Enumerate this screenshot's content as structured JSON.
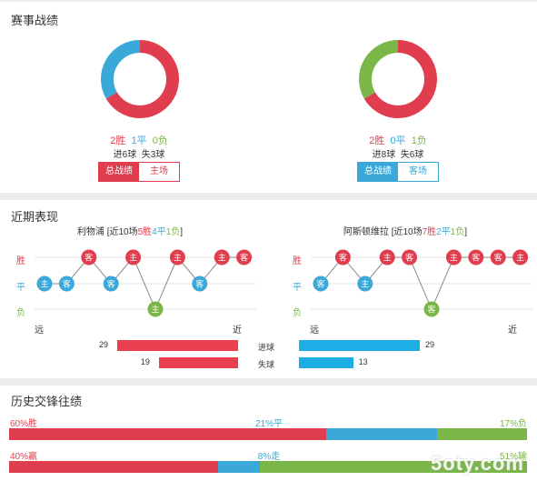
{
  "colors": {
    "win": "#e03e4e",
    "draw": "#3aa9d9",
    "loss": "#7ab648",
    "bar_home": "#e8404e",
    "bar_away": "#1daee6",
    "panel": "#ffffff",
    "background": "#ececec"
  },
  "record": {
    "title": "赛事战绩",
    "home": {
      "wins": "2胜",
      "draws": "1平",
      "losses": "0负",
      "goals_for": "进6球",
      "goals_against": "失3球",
      "donut": {
        "win": 2,
        "draw": 1,
        "loss": 0
      },
      "btn_total": "总战绩",
      "btn_side": "主场"
    },
    "away": {
      "wins": "2胜",
      "draws": "0平",
      "losses": "1负",
      "goals_for": "进8球",
      "goals_against": "失6球",
      "donut": {
        "win": 2,
        "draw": 0,
        "loss": 1
      },
      "btn_total": "总战绩",
      "btn_side": "客场"
    }
  },
  "recent": {
    "title": "近期表现",
    "row_labels": {
      "win": "胜",
      "draw": "平",
      "loss": "负"
    },
    "far": "远",
    "near": "近",
    "goals_scored_label": "进球",
    "goals_conceded_label": "失球",
    "home": {
      "team": "利物浦",
      "prefix": "[近10场",
      "w": "5胜",
      "d": "4平",
      "l": "1负",
      "suffix": "]",
      "matches": [
        {
          "venue": "主",
          "result": "平"
        },
        {
          "venue": "客",
          "result": "平"
        },
        {
          "venue": "客",
          "result": "胜"
        },
        {
          "venue": "客",
          "result": "平"
        },
        {
          "venue": "主",
          "result": "胜"
        },
        {
          "venue": "主",
          "result": "负"
        },
        {
          "venue": "主",
          "result": "胜"
        },
        {
          "venue": "客",
          "result": "平"
        },
        {
          "venue": "主",
          "result": "胜"
        },
        {
          "venue": "客",
          "result": "胜"
        }
      ],
      "goals_scored": 29,
      "goals_conceded": 19
    },
    "away": {
      "team": "阿斯顿维拉",
      "prefix": "[近10场",
      "w": "7胜",
      "d": "2平",
      "l": "1负",
      "suffix": "]",
      "matches": [
        {
          "venue": "客",
          "result": "平"
        },
        {
          "venue": "客",
          "result": "胜"
        },
        {
          "venue": "主",
          "result": "平"
        },
        {
          "venue": "主",
          "result": "胜"
        },
        {
          "venue": "客",
          "result": "胜"
        },
        {
          "venue": "客",
          "result": "负"
        },
        {
          "venue": "主",
          "result": "胜"
        },
        {
          "venue": "客",
          "result": "胜"
        },
        {
          "venue": "客",
          "result": "胜"
        },
        {
          "venue": "主",
          "result": "胜"
        }
      ],
      "goals_scored": 29,
      "goals_conceded": 13
    }
  },
  "history": {
    "title": "历史交锋往绩",
    "row1": {
      "win": "60%胜",
      "draw": "21%平",
      "loss": "17%负",
      "win_pct": 60,
      "draw_pct": 21,
      "loss_pct": 17
    },
    "row2": {
      "win": "40%赢",
      "draw": "8%走",
      "loss": "51%输",
      "win_pct": 40,
      "draw_pct": 8,
      "loss_pct": 51
    }
  },
  "watermark": "5oty.com"
}
